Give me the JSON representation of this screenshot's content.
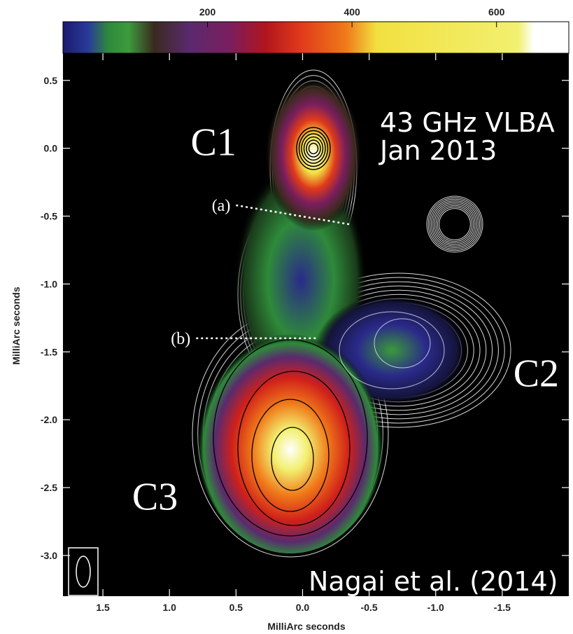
{
  "chart_data": {
    "type": "heatmap",
    "xlabel": "MilliArc seconds",
    "ylabel": "MilliArc seconds",
    "xlim": [
      1.8,
      -2.0
    ],
    "ylim": [
      -3.3,
      0.7
    ],
    "x_ticks": [
      1.5,
      1.0,
      0.5,
      0.0,
      -0.5,
      -1.0,
      -1.5
    ],
    "y_ticks": [
      0.5,
      0.0,
      -0.5,
      -1.0,
      -1.5,
      -2.0,
      -2.5,
      -3.0
    ],
    "x_tick_labels": [
      "1.5",
      "1.0",
      "0.5",
      "0.0",
      "-0.5",
      "-1.0",
      "-1.5"
    ],
    "y_tick_labels": [
      "0.5",
      "0.0",
      "-0.5",
      "-1.0",
      "-1.5",
      "-2.0",
      "-2.5",
      "-3.0"
    ],
    "colorbar": {
      "ticks": [
        200,
        400,
        600
      ],
      "tick_labels": [
        "200",
        "400",
        "600"
      ],
      "range": [
        0,
        700
      ],
      "colors": [
        "#1a1a6e",
        "#2a3a9a",
        "#2e8a3a",
        "#3e9a3c",
        "#3a2a1e",
        "#5a2a6e",
        "#7a1e5e",
        "#b0151e",
        "#e03a1a",
        "#f07a1a",
        "#f2e040",
        "#f2f070",
        "#ffffff"
      ]
    },
    "components": [
      {
        "label": "C1",
        "x": 0.0,
        "y": 0.0
      },
      {
        "label": "C2",
        "x": -0.9,
        "y": -1.6
      },
      {
        "label": "C3",
        "x": 0.15,
        "y": -2.25
      }
    ],
    "slice_cuts": [
      {
        "label": "(a)",
        "x_start": 0.5,
        "x_end": -0.35,
        "y_start": -0.42,
        "y_end": -0.56
      },
      {
        "label": "(b)",
        "x_start": 0.8,
        "x_end": -0.1,
        "y_start": -1.4,
        "y_end": -1.4
      }
    ],
    "grid": false
  },
  "annotations": {
    "telescope": "43 GHz VLBA",
    "date": "Jan 2013",
    "credit": "Nagai et al. (2014)"
  },
  "colors": {
    "background": "#000000",
    "contour_outer": "#ffffff",
    "contour_inner": "#000000"
  }
}
